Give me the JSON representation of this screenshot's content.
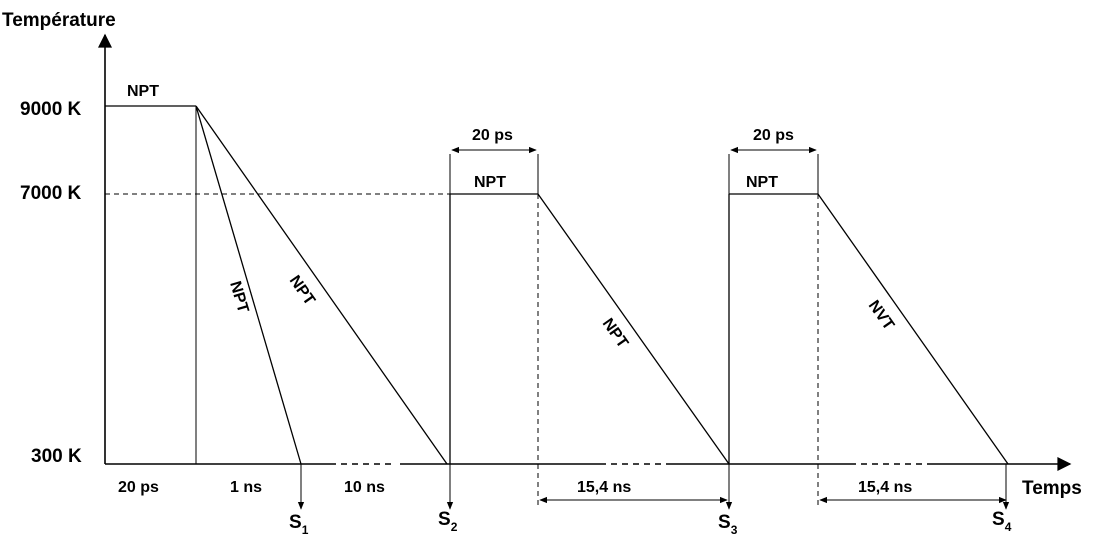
{
  "axes": {
    "y_label": "Température",
    "x_label": "Temps"
  },
  "levels": {
    "t9000": "9000 K",
    "t7000": "7000 K",
    "t300": "300 K"
  },
  "segments": {
    "npt_initial": "NPT",
    "npt_quench_fast": "NPT",
    "npt_quench_slow": "NPT",
    "npt_hold_2": "NPT",
    "npt_ramp_2": "NPT",
    "npt_hold_3": "NPT",
    "nvt_ramp_3": "NVT"
  },
  "durations": {
    "hold_initial": "20 ps",
    "quench_fast": "1 ns",
    "quench_slow": "10 ns",
    "hold_2": "20 ps",
    "ramp_2": "15,4 ns",
    "hold_3": "20 ps",
    "ramp_3": "15,4 ns"
  },
  "samples": {
    "s1": {
      "base": "S",
      "index": "1"
    },
    "s2": {
      "base": "S",
      "index": "2"
    },
    "s3": {
      "base": "S",
      "index": "3"
    },
    "s4": {
      "base": "S",
      "index": "4"
    }
  }
}
